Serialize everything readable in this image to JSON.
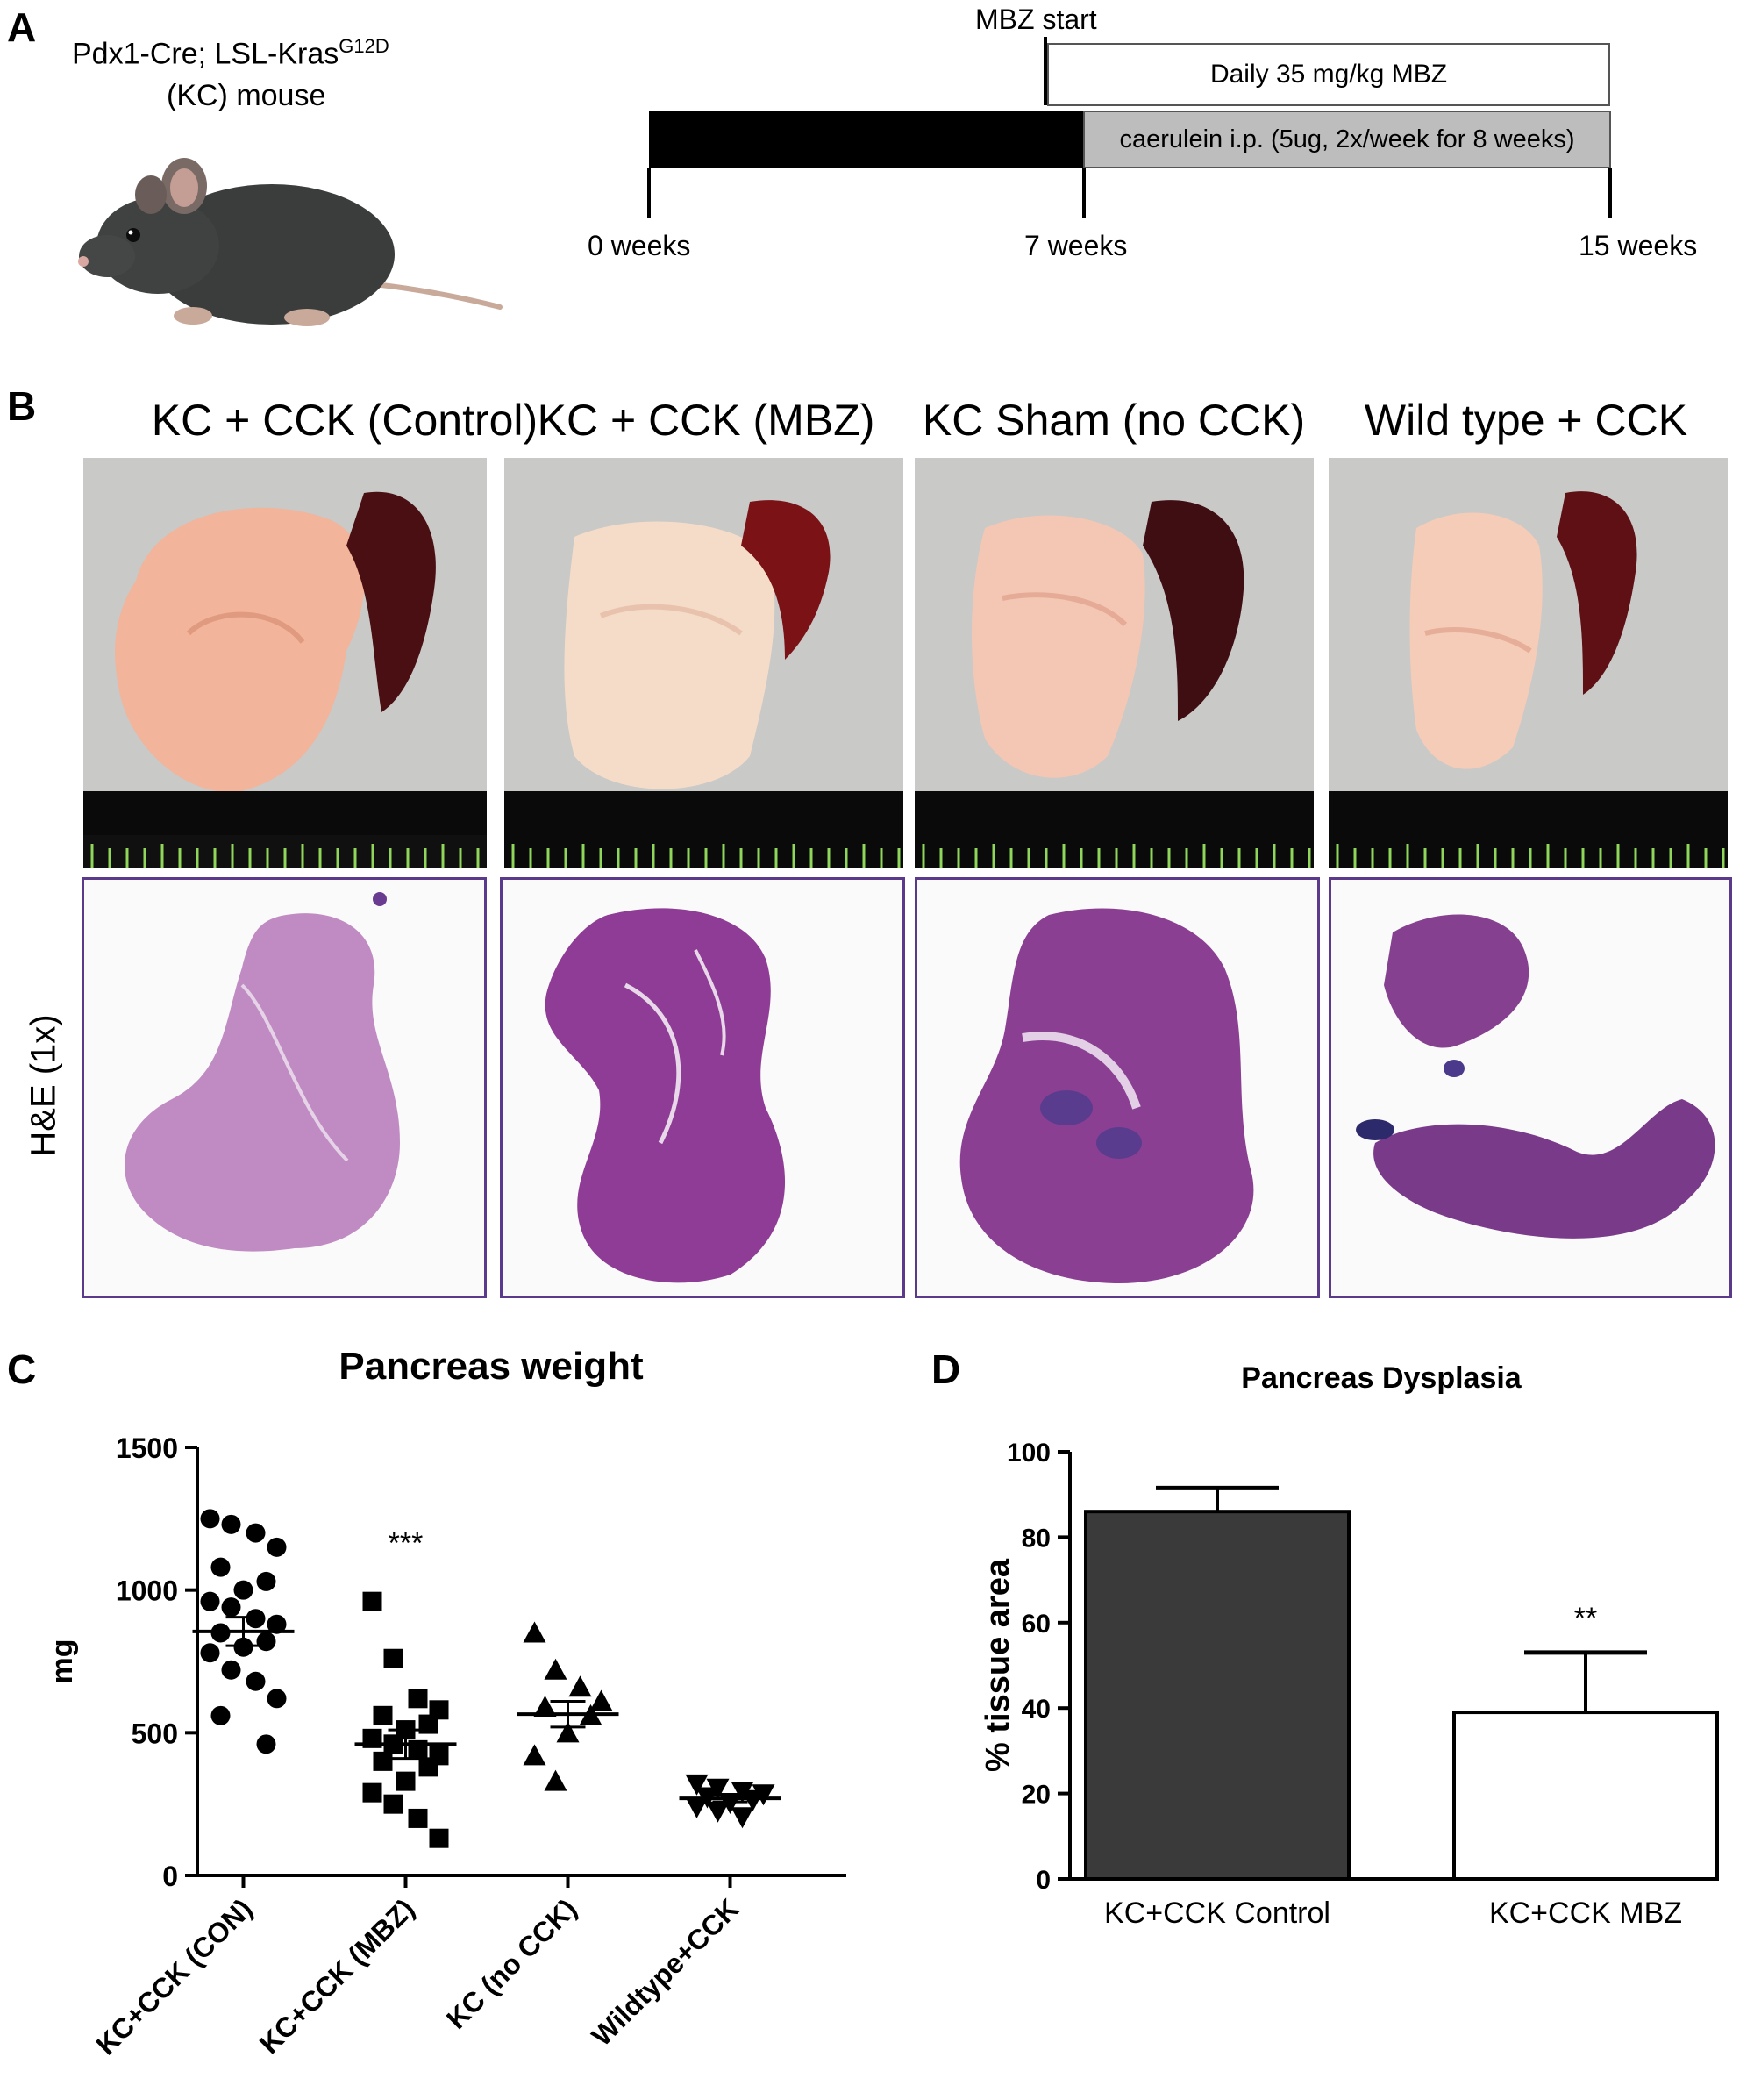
{
  "panelA": {
    "letter": "A",
    "mouse_line1": "Pdx1-Cre; LSL-Kras",
    "mouse_sup": "G12D",
    "mouse_line2": "(KC) mouse",
    "mbz_start": "MBZ start",
    "daily_label": "Daily 35 mg/kg MBZ",
    "caerulein_label": "caerulein i.p. (5ug, 2x/week for 8 weeks)",
    "timepoints": [
      "0 weeks",
      "7 weeks",
      "15 weeks"
    ]
  },
  "panelB": {
    "letter": "B",
    "groups": [
      "KC + CCK (Control)",
      "KC + CCK (MBZ)",
      "KC Sham (no CCK)",
      "Wild type + CCK"
    ],
    "he_label": "H&E  (1x)"
  },
  "panelC": {
    "letter": "C"
  },
  "panelD": {
    "letter": "D"
  },
  "chart_data": [
    {
      "type": "scatter",
      "title": "Pancreas weight",
      "ylabel": "mg",
      "ylim": [
        0,
        1500
      ],
      "yticks": [
        0,
        500,
        1000,
        1500
      ],
      "categories": [
        "KC+CCK (CON)",
        "KC+CCK (MBZ)",
        "KC (no CCK)",
        "Wildtype+CCK"
      ],
      "markers": [
        "circle",
        "square",
        "triangle-up",
        "triangle-down"
      ],
      "series": [
        {
          "values": [
            1250,
            1230,
            1200,
            1150,
            1080,
            1030,
            1000,
            960,
            940,
            900,
            880,
            850,
            820,
            800,
            780,
            720,
            680,
            620,
            560,
            460
          ],
          "mean": 855,
          "sem": 50
        },
        {
          "values": [
            960,
            760,
            620,
            580,
            560,
            530,
            510,
            480,
            460,
            440,
            420,
            400,
            380,
            330,
            290,
            250,
            200,
            130
          ],
          "mean": 460,
          "sem": 50
        },
        {
          "values": [
            850,
            720,
            660,
            610,
            590,
            560,
            500,
            420,
            330
          ],
          "mean": 565,
          "sem": 45
        },
        {
          "values": [
            320,
            305,
            295,
            285,
            275,
            265,
            255,
            240,
            225,
            205
          ],
          "mean": 270,
          "sem": 12
        }
      ],
      "annotations": [
        {
          "category": "KC+CCK (MBZ)",
          "text": "***"
        }
      ]
    },
    {
      "type": "bar",
      "title": "Pancreas Dysplasia",
      "ylabel": "% tissue area",
      "ylim": [
        0,
        100
      ],
      "yticks": [
        0,
        20,
        40,
        60,
        80,
        100
      ],
      "categories": [
        "KC+CCK Control",
        "KC+CCK MBZ"
      ],
      "values": [
        86,
        39
      ],
      "errors": [
        5.5,
        14
      ],
      "colors": [
        "#3a3a3a",
        "#ffffff"
      ],
      "annotations": [
        {
          "category": "KC+CCK MBZ",
          "text": "**"
        }
      ]
    }
  ]
}
